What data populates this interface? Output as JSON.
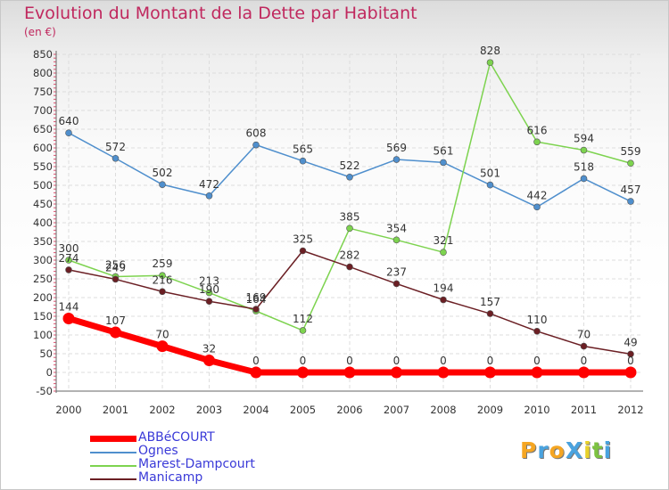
{
  "chart_data": {
    "type": "line",
    "title": "Evolution du Montant de la Dette par Habitant",
    "unit_label": "(en €)",
    "x": [
      "2000",
      "2001",
      "2002",
      "2003",
      "2004",
      "2005",
      "2006",
      "2007",
      "2008",
      "2009",
      "2010",
      "2011",
      "2012"
    ],
    "ylim": [
      -50,
      850
    ],
    "yticks": [
      -50,
      0,
      50,
      100,
      150,
      200,
      250,
      300,
      350,
      400,
      450,
      500,
      550,
      600,
      650,
      700,
      750,
      800,
      850
    ],
    "ytick_labels": [
      "-50",
      "0",
      "50",
      "100",
      "150",
      "200",
      "250",
      "300",
      "350",
      "400",
      "450",
      "500",
      "550",
      "600",
      "650",
      "700",
      "750",
      "800",
      "850"
    ],
    "grid": true,
    "legend_position": "bottom-left",
    "series": [
      {
        "name": "ABBéCOURT",
        "color": "#ff0000",
        "values": [
          144,
          107,
          70,
          32,
          0,
          0,
          0,
          0,
          0,
          0,
          0,
          0,
          0
        ],
        "labels": [
          "144",
          "107",
          "70",
          "32",
          "0",
          "0",
          "0",
          "0",
          "0",
          "0",
          "0",
          "0",
          "0"
        ]
      },
      {
        "name": "Ognes",
        "color": "#4f8fcd",
        "values": [
          640,
          572,
          502,
          472,
          608,
          565,
          522,
          569,
          561,
          501,
          442,
          518,
          457
        ],
        "labels": [
          "640",
          "572",
          "502",
          "472",
          "608",
          "565",
          "522",
          "569",
          "561",
          "501",
          "442",
          "518",
          "457"
        ]
      },
      {
        "name": "Marest-Dampcourt",
        "color": "#7dd34f",
        "values": [
          300,
          256,
          259,
          213,
          164,
          112,
          385,
          354,
          321,
          828,
          616,
          594,
          559
        ],
        "labels": [
          "300",
          "256",
          "259",
          "213",
          "164",
          "112",
          "385",
          "354",
          "321",
          "828",
          "616",
          "594",
          "559"
        ]
      },
      {
        "name": "Manicamp",
        "color": "#6b1f24",
        "values": [
          274,
          249,
          216,
          190,
          169,
          325,
          282,
          237,
          194,
          157,
          110,
          70,
          49
        ],
        "labels": [
          "274",
          "249",
          "216",
          "190",
          "169",
          "325",
          "282",
          "237",
          "194",
          "157",
          "110",
          "70",
          "49"
        ]
      }
    ]
  },
  "logo": {
    "text": "ProXiti",
    "letter_colors": [
      "#f5a623",
      "#4aa3df",
      "#f5a623",
      "#4aa3df",
      "#e8d12a",
      "#7dc242",
      "#4aa3df"
    ]
  }
}
